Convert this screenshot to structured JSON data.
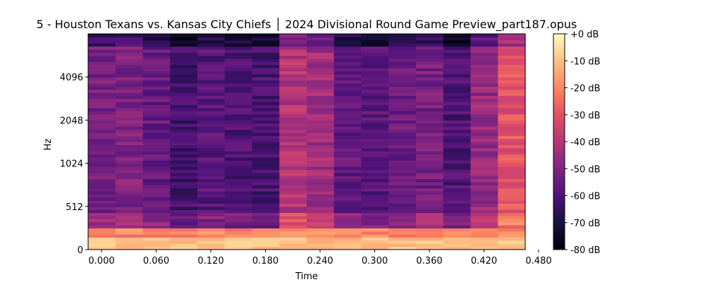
{
  "chart_data": {
    "type": "heatmap",
    "title": "5 - Houston Texans vs. Kansas City Chiefs │ 2024 Divisional Round Game Preview_part187.opus",
    "xlabel": "Time",
    "ylabel": "Hz",
    "x_ticks": [
      "0.000",
      "0.060",
      "0.120",
      "0.180",
      "0.240",
      "0.300",
      "0.360",
      "0.420",
      "0.480"
    ],
    "y_ticks": [
      "0",
      "512",
      "1024",
      "2048",
      "4096"
    ],
    "colorbar": {
      "ticks": [
        "+0 dB",
        "-10 dB",
        "-20 dB",
        "-30 dB",
        "-40 dB",
        "-50 dB",
        "-60 dB",
        "-70 dB",
        "-80 dB"
      ],
      "range_db": [
        -80,
        0
      ],
      "colormap": "magma"
    },
    "frames": 16,
    "frame_levels_db": [
      -52,
      -50,
      -55,
      -62,
      -58,
      -60,
      -61,
      -40,
      -44,
      -56,
      -58,
      -54,
      -52,
      -60,
      -46,
      -30
    ]
  },
  "colors": {
    "background": "#ffffff",
    "axis": "#000000"
  }
}
